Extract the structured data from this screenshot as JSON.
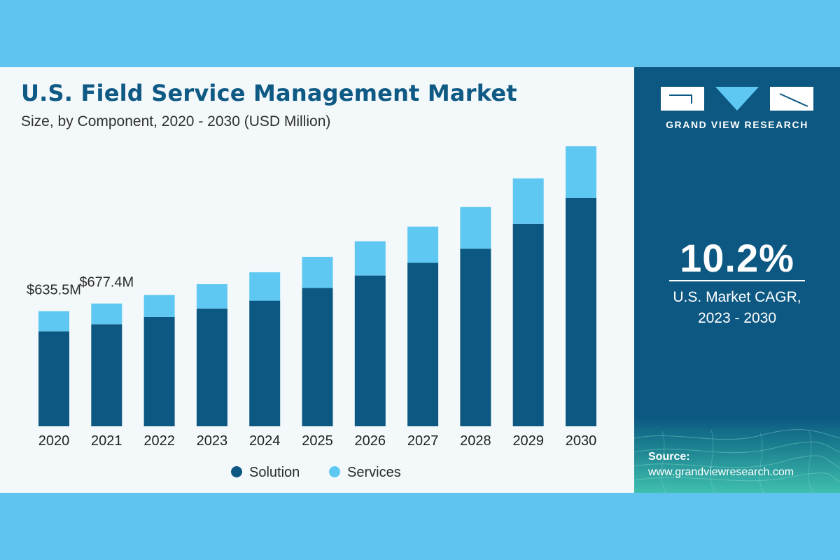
{
  "header": {
    "title": "U.S. Field Service Management Market",
    "subtitle": "Size, by Component, 2020 - 2030 (USD Million)"
  },
  "chart_data": {
    "type": "bar",
    "stacked": true,
    "categories": [
      "2020",
      "2021",
      "2022",
      "2023",
      "2024",
      "2025",
      "2026",
      "2027",
      "2028",
      "2029",
      "2030"
    ],
    "series": [
      {
        "name": "Solution",
        "color": "#0c5882",
        "values": [
          524,
          563,
          603,
          650,
          693,
          764,
          832,
          902,
          980,
          1117,
          1260
        ]
      },
      {
        "name": "Services",
        "color": "#5fc8f2",
        "values": [
          111.5,
          114.4,
          122,
          134,
          157,
          171,
          189,
          200,
          230,
          251,
          285
        ]
      }
    ],
    "annotations": [
      {
        "category": "2020",
        "text": "$635.5M"
      },
      {
        "category": "2021",
        "text": "$677.4M"
      }
    ],
    "ylim": [
      0,
      1545
    ],
    "grid": false,
    "legend": "bottom"
  },
  "sidebar": {
    "brand": "GRAND VIEW RESEARCH",
    "cagr_value": "10.2%",
    "cagr_label_line1": "U.S. Market CAGR,",
    "cagr_label_line2": "2023 - 2030",
    "source_label": "Source:",
    "source_url": "www.grandviewresearch.com"
  }
}
